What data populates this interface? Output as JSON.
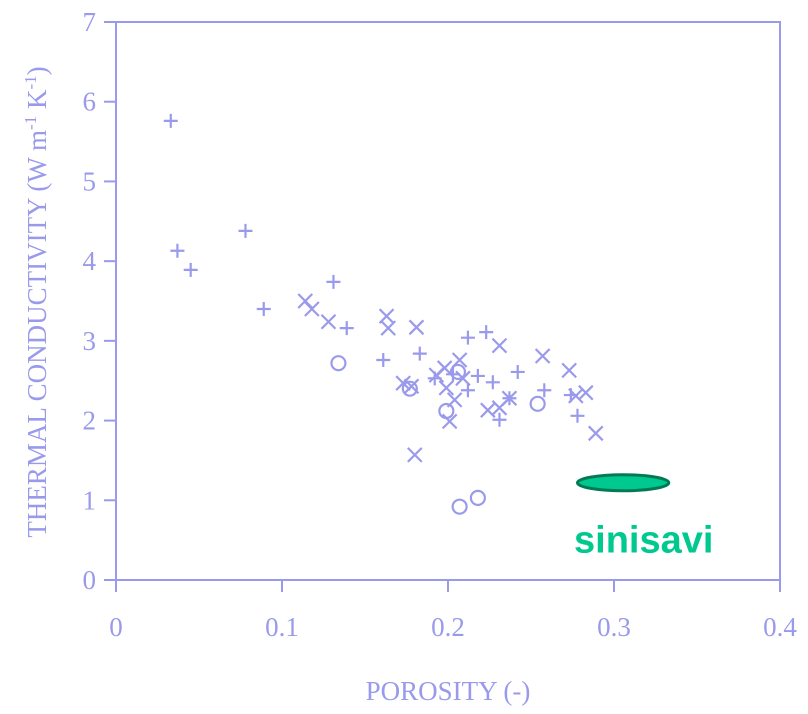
{
  "chart_data": {
    "type": "scatter",
    "xlabel": "POROSITY (-)",
    "ylabel": [
      "THERMAL CONDUCTIVITY (W m",
      "-1",
      " K",
      "-1",
      ")"
    ],
    "xlim": [
      0,
      0.4
    ],
    "ylim": [
      0,
      7
    ],
    "xticks": [
      0,
      0.1,
      0.2,
      0.3,
      0.4
    ],
    "yticks": [
      0,
      1,
      2,
      3,
      4,
      5,
      6,
      7
    ],
    "color": "#9a9aec",
    "series": [
      {
        "marker": "plus",
        "x": [
          0.033,
          0.037,
          0.045,
          0.078,
          0.089,
          0.131,
          0.139,
          0.161,
          0.183,
          0.192,
          0.203,
          0.212,
          0.223,
          0.218,
          0.212,
          0.227,
          0.231,
          0.237,
          0.242,
          0.258,
          0.278,
          0.274
        ],
        "values": [
          5.76,
          4.13,
          3.89,
          4.38,
          3.4,
          3.74,
          3.16,
          2.76,
          2.84,
          2.53,
          2.58,
          3.04,
          3.11,
          2.56,
          2.38,
          2.48,
          2.01,
          2.28,
          2.61,
          2.38,
          2.06,
          2.32
        ]
      },
      {
        "marker": "cross",
        "x": [
          0.114,
          0.118,
          0.128,
          0.163,
          0.164,
          0.181,
          0.173,
          0.178,
          0.18,
          0.193,
          0.198,
          0.199,
          0.201,
          0.204,
          0.207,
          0.209,
          0.224,
          0.231,
          0.231,
          0.237,
          0.257,
          0.273,
          0.277,
          0.283,
          0.289
        ],
        "values": [
          3.5,
          3.4,
          3.24,
          3.31,
          3.16,
          3.17,
          2.47,
          2.43,
          1.57,
          2.57,
          2.66,
          2.41,
          1.99,
          2.26,
          2.76,
          2.53,
          2.13,
          2.94,
          2.16,
          2.28,
          2.81,
          2.63,
          2.31,
          2.35,
          1.84
        ]
      },
      {
        "marker": "circle",
        "x": [
          0.134,
          0.177,
          0.199,
          0.206,
          0.207,
          0.218,
          0.254
        ],
        "values": [
          2.72,
          2.4,
          2.12,
          2.61,
          0.92,
          1.03,
          2.21
        ]
      }
    ],
    "annotation": {
      "text": "sinisavi",
      "x": [
        0.278,
        0.333
      ],
      "y": 1.22,
      "color": "#00c98f",
      "edge": "#007a55"
    }
  }
}
